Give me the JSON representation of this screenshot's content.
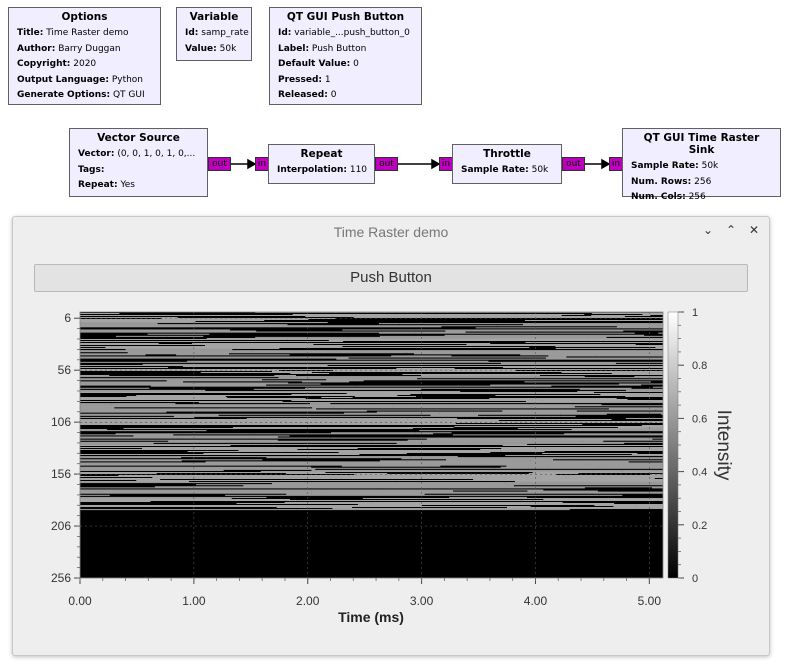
{
  "blocks": {
    "options": {
      "title": "Options",
      "rows": [
        {
          "k": "Title:",
          "v": "Time Raster demo"
        },
        {
          "k": "Author:",
          "v": "Barry Duggan"
        },
        {
          "k": "Copyright:",
          "v": "2020"
        },
        {
          "k": "Output Language:",
          "v": "Python"
        },
        {
          "k": "Generate Options:",
          "v": "QT GUI"
        }
      ]
    },
    "variable": {
      "title": "Variable",
      "rows": [
        {
          "k": "Id:",
          "v": "samp_rate"
        },
        {
          "k": "Value:",
          "v": "50k"
        }
      ]
    },
    "push_button": {
      "title": "QT GUI Push Button",
      "rows": [
        {
          "k": "Id:",
          "v": "variable_...push_button_0"
        },
        {
          "k": "Label:",
          "v": "Push Button"
        },
        {
          "k": "Default Value:",
          "v": "0"
        },
        {
          "k": "Pressed:",
          "v": "1"
        },
        {
          "k": "Released:",
          "v": "0"
        }
      ]
    },
    "vector_source": {
      "title": "Vector Source",
      "rows": [
        {
          "k": "Vector:",
          "v": "(0, 0, 1, 0, 1, 0,..."
        },
        {
          "k": "Tags:",
          "v": ""
        },
        {
          "k": "Repeat:",
          "v": "Yes"
        }
      ]
    },
    "repeat": {
      "title": "Repeat",
      "rows": [
        {
          "k": "Interpolation:",
          "v": "110"
        }
      ]
    },
    "throttle": {
      "title": "Throttle",
      "rows": [
        {
          "k": "Sample Rate:",
          "v": "50k"
        }
      ]
    },
    "raster_sink": {
      "title": "QT GUI Time Raster Sink",
      "rows": [
        {
          "k": "Sample Rate:",
          "v": "50k"
        },
        {
          "k": "Num. Rows:",
          "v": "256"
        },
        {
          "k": "Num. Cols:",
          "v": "256"
        }
      ]
    }
  },
  "ports": {
    "out": "out",
    "in": "in"
  },
  "window": {
    "title": "Time Raster demo",
    "controls": {
      "minimize": "⌄",
      "maximize": "⌃",
      "close": "✕"
    },
    "push_button_label": "Push Button"
  },
  "chart_data": {
    "type": "heatmap",
    "title": "",
    "xlabel": "Time (ms)",
    "ylabel": "",
    "x_ticks": [
      "0.00",
      "1.00",
      "2.00",
      "3.00",
      "4.00",
      "5.00"
    ],
    "y_ticks": [
      "6",
      "56",
      "106",
      "156",
      "206",
      "256"
    ],
    "xlim": [
      0,
      5.12
    ],
    "ylim": [
      0,
      256
    ],
    "colorbar_label": "Intensity",
    "colorbar_ticks": [
      "0",
      "0.2",
      "0.4",
      "0.6",
      "0.8",
      "1"
    ],
    "colorbar_range": [
      0,
      1
    ],
    "filled_rows": 191,
    "empty_rows_value": 0,
    "colormap": "black-white",
    "grid": true
  },
  "colors": {
    "block_fill": "#f0eeff",
    "port_fill": "#c000c0",
    "window_bg": "#eeeeee"
  }
}
